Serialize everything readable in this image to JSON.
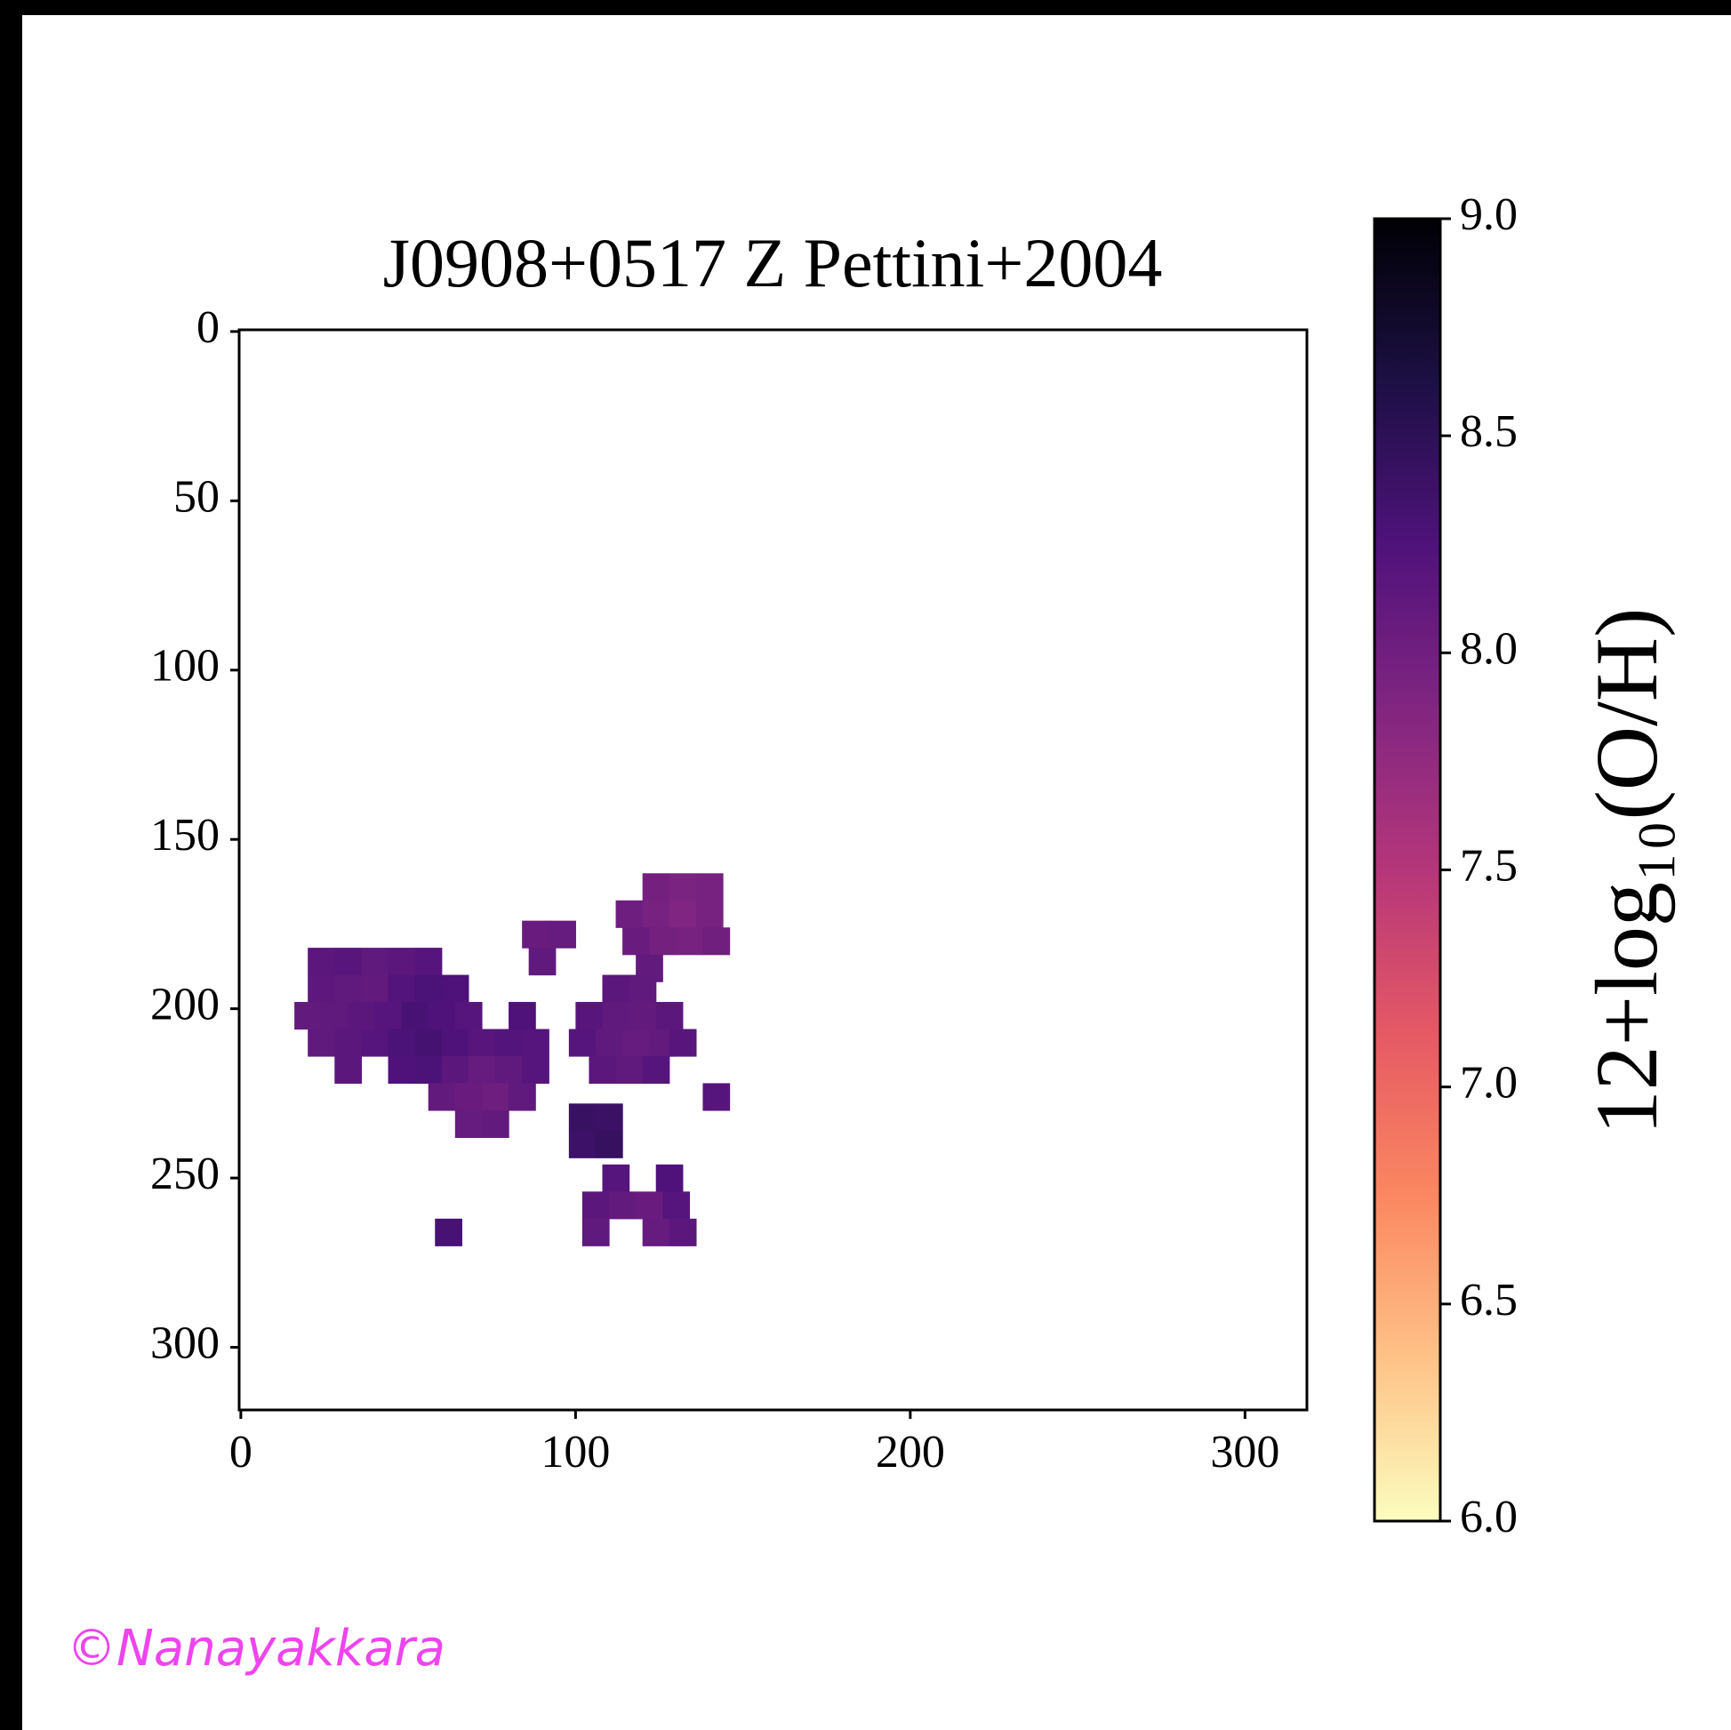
{
  "chart_data": {
    "type": "image",
    "title": "J0908+0517 Z Pettini+2004",
    "colorbar_label": "12+log₁₀(O/H)",
    "watermark": "©Nanayakkara",
    "xlim": [
      -0.5,
      318.5
    ],
    "ylim": [
      318.5,
      -0.5
    ],
    "xticks": [
      0,
      100,
      200,
      300
    ],
    "yticks": [
      0,
      50,
      100,
      150,
      200,
      250,
      300
    ],
    "clim": [
      6,
      9
    ],
    "cticks": [
      {
        "value": 6,
        "label": "6.0"
      },
      {
        "value": 6.5,
        "label": "6.5"
      },
      {
        "value": 7,
        "label": "7.0"
      },
      {
        "value": 7.5,
        "label": "7.5"
      },
      {
        "value": 8,
        "label": "8.0"
      },
      {
        "value": 8.5,
        "label": "8.5"
      },
      {
        "value": 9,
        "label": "9.0"
      }
    ],
    "colormap": [
      "#fcfdbf",
      "#fec287",
      "#fb8761",
      "#e55964",
      "#b5367a",
      "#812581",
      "#4f127b",
      "#1c1044",
      "#000004"
    ],
    "x": [
      24,
      32,
      40,
      48,
      56,
      24,
      32,
      40,
      48,
      56,
      64,
      20,
      28,
      36,
      44,
      52,
      60,
      68,
      84,
      24,
      32,
      40,
      48,
      56,
      64,
      72,
      80,
      88,
      32,
      48,
      56,
      64,
      72,
      80,
      88,
      60,
      68,
      76,
      84,
      68,
      76,
      124,
      132,
      140,
      116,
      124,
      132,
      140,
      118,
      126,
      134,
      142,
      122,
      88,
      96,
      90,
      112,
      120,
      104,
      112,
      120,
      128,
      102,
      110,
      118,
      126,
      132,
      108,
      116,
      124,
      102,
      110,
      102,
      110,
      142,
      112,
      128,
      106,
      114,
      122,
      130,
      106,
      124,
      132,
      62
    ],
    "y": [
      186,
      186,
      186,
      186,
      186,
      194,
      194,
      194,
      194,
      194,
      194,
      202,
      202,
      202,
      202,
      202,
      202,
      202,
      202,
      210,
      210,
      210,
      210,
      210,
      210,
      210,
      210,
      210,
      218,
      218,
      218,
      218,
      218,
      218,
      218,
      226,
      226,
      226,
      226,
      234,
      234,
      164,
      164,
      164,
      172,
      172,
      172,
      172,
      180,
      180,
      180,
      180,
      188,
      178,
      178,
      186,
      194,
      194,
      202,
      202,
      202,
      202,
      210,
      210,
      210,
      210,
      210,
      218,
      218,
      218,
      232,
      232,
      240,
      240,
      226,
      250,
      250,
      258,
      258,
      258,
      258,
      266,
      266,
      266,
      266
    ],
    "values": [
      8.15,
      8.18,
      8.12,
      8.16,
      8.2,
      8.14,
      8.12,
      8.1,
      8.22,
      8.28,
      8.25,
      8.1,
      8.12,
      8.15,
      8.2,
      8.3,
      8.26,
      8.2,
      8.25,
      8.12,
      8.15,
      8.2,
      8.28,
      8.32,
      8.25,
      8.18,
      8.22,
      8.2,
      8.15,
      8.25,
      8.28,
      8.15,
      8.08,
      8.12,
      8.2,
      8.1,
      8.05,
      8.02,
      8.12,
      8.08,
      8.1,
      7.98,
      7.92,
      7.95,
      8.02,
      7.95,
      7.88,
      7.95,
      8.05,
      7.98,
      7.95,
      8.0,
      8.1,
      8.05,
      8.08,
      8.12,
      8.15,
      8.12,
      8.18,
      8.12,
      8.1,
      8.15,
      8.2,
      8.12,
      8.08,
      8.1,
      8.18,
      8.15,
      8.12,
      8.2,
      8.42,
      8.4,
      8.38,
      8.44,
      8.2,
      8.2,
      8.25,
      8.15,
      8.1,
      8.05,
      8.2,
      8.12,
      8.08,
      8.15,
      8.3
    ]
  }
}
